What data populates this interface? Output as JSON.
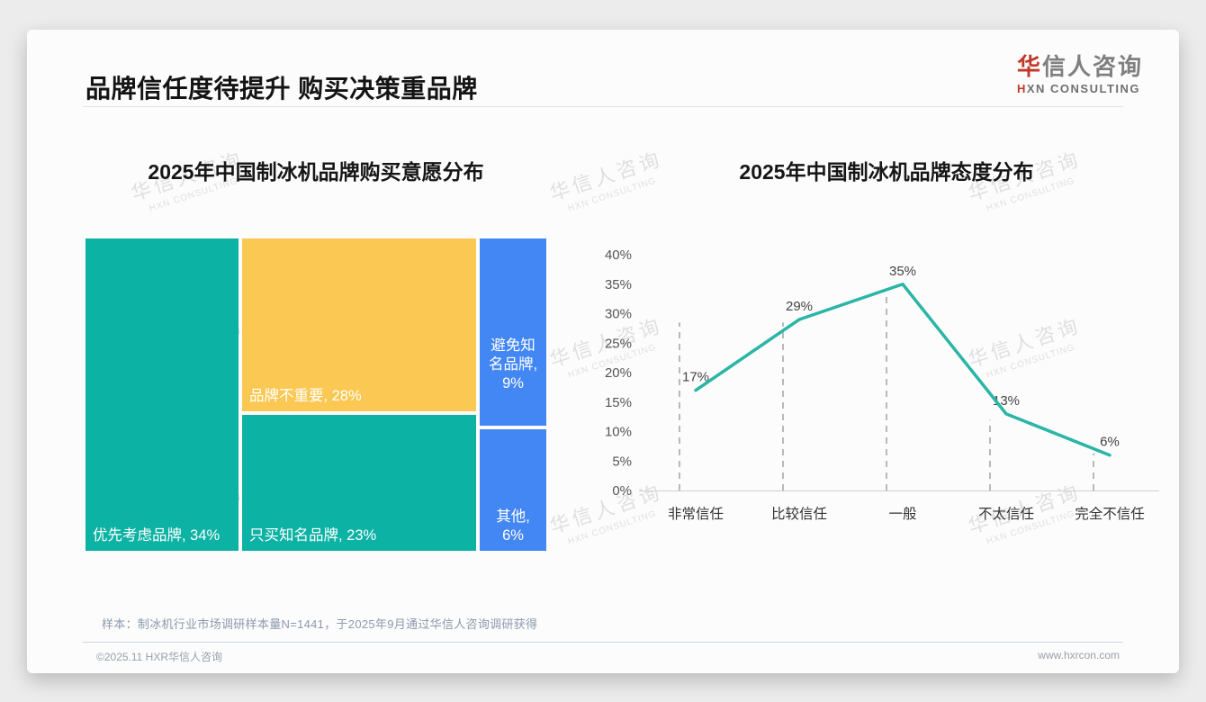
{
  "header": {
    "title": "品牌信任度待提升 购买决策重品牌",
    "logo": {
      "zh_first": "华",
      "zh_rest": "信人咨询",
      "en_first": "H",
      "en_rest": "XN CONSULTING"
    }
  },
  "watermark": {
    "line1": "华信人咨询",
    "line2": "HXN CONSULTING"
  },
  "chart_data": [
    {
      "type": "treemap",
      "title": "2025年中国制冰机品牌购买意愿分布",
      "items": [
        {
          "label": "优先考虑品牌",
          "value": 34,
          "display": "优先考虑品牌, 34%",
          "color": "#0cb2a4"
        },
        {
          "label": "品牌不重要",
          "value": 28,
          "display": "品牌不重要, 28%",
          "color": "#fbc854"
        },
        {
          "label": "只买知名品牌",
          "value": 23,
          "display": "只买知名品牌, 23%",
          "color": "#0cb2a4"
        },
        {
          "label": "避免知名品牌",
          "value": 9,
          "display": "避免知名品牌, 9%",
          "color": "#4387f4"
        },
        {
          "label": "其他",
          "value": 6,
          "display": "其他, 6%",
          "color": "#4387f4"
        }
      ],
      "text_color": "#ffffff"
    },
    {
      "type": "line",
      "title": "2025年中国制冰机品牌态度分布",
      "categories": [
        "非常信任",
        "比较信任",
        "一般",
        "不太信任",
        "完全不信任"
      ],
      "values": [
        17,
        29,
        35,
        13,
        6
      ],
      "point_labels": [
        "17%",
        "29%",
        "35%",
        "13%",
        "6%"
      ],
      "ylim": [
        0,
        40
      ],
      "yticks": [
        "0%",
        "5%",
        "10%",
        "15%",
        "20%",
        "25%",
        "30%",
        "35%",
        "40%"
      ],
      "line_color": "#2ab5a6",
      "dropline_tops_pct": [
        28.5,
        28.5,
        33.5,
        12,
        6.3
      ],
      "grid": "dashed vertical droplines per category, single gray baseline",
      "legend": "none"
    }
  ],
  "footnote": "样本：制冰机行业市场调研样本量N=1441，于2025年9月通过华信人咨询调研获得",
  "footer": {
    "copyright": "©2025.11 HXR华信人咨询",
    "website": "www.hxrcon.com"
  }
}
